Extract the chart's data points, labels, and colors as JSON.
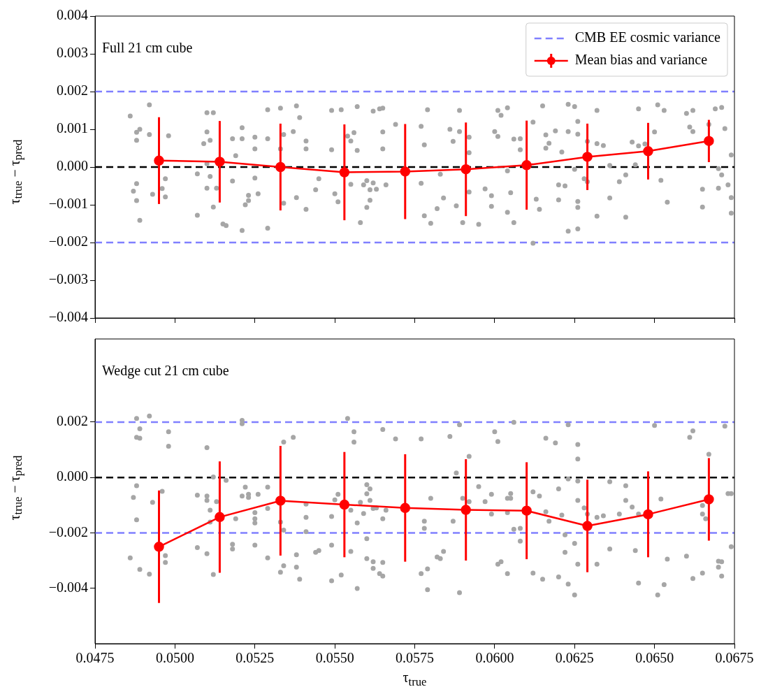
{
  "chart_data": [
    {
      "type": "line",
      "ylabel": "τ$_{true}$ − τ$_{pred}$",
      "annotations": [
        "Full 21 cm cube"
      ],
      "legend": "top right",
      "grid": false,
      "marker": "circle",
      "tick_labels": "y",
      "xlim": [
        0.0475,
        0.0675
      ],
      "xticks": [
        {
          "value": 0.0475,
          "label": null
        },
        {
          "value": 0.05,
          "label": null
        },
        {
          "value": 0.0525,
          "label": null
        },
        {
          "value": 0.055,
          "label": null
        },
        {
          "value": 0.0575,
          "label": null
        },
        {
          "value": 0.06,
          "label": null
        },
        {
          "value": 0.0625,
          "label": null
        },
        {
          "value": 0.065,
          "label": null
        },
        {
          "value": 0.0675,
          "label": null
        }
      ],
      "ylim": [
        -0.004,
        0.004
      ],
      "yticks": [
        {
          "value": -0.004,
          "label": "−0.004"
        },
        {
          "value": -0.003,
          "label": "−0.003"
        },
        {
          "value": -0.002,
          "label": "−0.002"
        },
        {
          "value": -0.001,
          "label": "−0.001"
        },
        {
          "value": 0,
          "label": "0.000"
        },
        {
          "value": 0.001,
          "label": "0.001"
        },
        {
          "value": 0.002,
          "label": "0.002"
        },
        {
          "value": 0.003,
          "label": "0.003"
        },
        {
          "value": 0.004,
          "label": "0.004"
        }
      ],
      "ref_lines": [
        {
          "axis": "y",
          "value": 0.002,
          "label": "CMB EE cosmic variance",
          "color": "#8080ff",
          "line_style": "dashed"
        },
        {
          "axis": "y",
          "value": -0.002,
          "color": "#8080ff",
          "line_style": "dashed"
        },
        {
          "axis": "y",
          "value": 0,
          "color": "#000000",
          "line_style": "dashed"
        }
      ],
      "x": [
        0.0495,
        0.0514,
        0.0533,
        0.0553,
        0.0572,
        0.0591,
        0.061,
        0.0629,
        0.0648,
        0.0667
      ],
      "series": [
        {
          "type": "scatter",
          "color": "#a6a6a6",
          "x": [
            0.0486,
            0.0492,
            0.0488,
            0.0489,
            0.0492,
            0.0488,
            0.0498,
            0.0488,
            0.0487,
            0.0488,
            0.0489,
            0.0493,
            0.0497,
            0.0496,
            0.0497,
            0.051,
            0.0512,
            0.051,
            0.0511,
            0.0509,
            0.0519,
            0.051,
            0.0507,
            0.0511,
            0.051,
            0.0513,
            0.0512,
            0.0507,
            0.0515,
            0.0516,
            0.0521,
            0.0518,
            0.0521,
            0.0521,
            0.0525,
            0.0525,
            0.0529,
            0.0529,
            0.0533,
            0.0538,
            0.0539,
            0.0534,
            0.0537,
            0.0541,
            0.0541,
            0.0533,
            0.0518,
            0.0525,
            0.0526,
            0.0523,
            0.0523,
            0.0522,
            0.0529,
            0.0534,
            0.0538,
            0.0541,
            0.0544,
            0.0545,
            0.0549,
            0.0552,
            0.0557,
            0.0562,
            0.0564,
            0.0565,
            0.0554,
            0.0556,
            0.0555,
            0.0549,
            0.0557,
            0.0565,
            0.0565,
            0.0569,
            0.055,
            0.0551,
            0.0555,
            0.0559,
            0.056,
            0.0562,
            0.0561,
            0.0563,
            0.0561,
            0.056,
            0.0558,
            0.0566,
            0.0579,
            0.0577,
            0.0578,
            0.0586,
            0.0589,
            0.0589,
            0.0587,
            0.0592,
            0.0592,
            0.0601,
            0.0602,
            0.0604,
            0.06,
            0.0601,
            0.0606,
            0.0608,
            0.0608,
            0.0612,
            0.0615,
            0.0616,
            0.0617,
            0.0616,
            0.0619,
            0.0621,
            0.0623,
            0.0625,
            0.0626,
            0.0623,
            0.0626,
            0.0629,
            0.0632,
            0.0634,
            0.0632,
            0.0645,
            0.0651,
            0.0653,
            0.065,
            0.0643,
            0.0645,
            0.0647,
            0.066,
            0.0662,
            0.0661,
            0.0662,
            0.0669,
            0.0671,
            0.0672,
            0.0667,
            0.0674,
            0.0636,
            0.0644,
            0.0577,
            0.0583,
            0.0584,
            0.0582,
            0.0578,
            0.058,
            0.0588,
            0.059,
            0.0592,
            0.0595,
            0.0597,
            0.0599,
            0.0599,
            0.0604,
            0.0605,
            0.0604,
            0.0606,
            0.0613,
            0.0614,
            0.0612,
            0.062,
            0.0622,
            0.062,
            0.0626,
            0.0626,
            0.0628,
            0.0629,
            0.0625,
            0.0623,
            0.0626,
            0.0632,
            0.0636,
            0.0639,
            0.0641,
            0.0641,
            0.0652,
            0.0654,
            0.0665,
            0.0665,
            0.067,
            0.0671,
            0.067,
            0.0673,
            0.0674,
            0.0674
          ],
          "values": [
            0.00135,
            0.00165,
            0.00092,
            0.001,
            0.00086,
            0.00071,
            0.00083,
            -0.00044,
            -0.00064,
            -0.00089,
            -0.00141,
            -0.00072,
            -0.00031,
            -0.00057,
            -0.00079,
            0.00144,
            0.00144,
            0.00093,
            0.00071,
            0.00062,
            0.0003,
            9e-05,
            -0.00018,
            -0.00025,
            -0.00056,
            -0.00056,
            -0.00106,
            -0.00128,
            -0.00151,
            -0.00155,
            -0.00168,
            0.00075,
            0.00075,
            0.00104,
            0.00079,
            0.00048,
            0.00075,
            0.00152,
            0.00156,
            0.00162,
            0.00131,
            0.00086,
            0.00094,
            0.00069,
            0.00048,
            0.00048,
            -0.00037,
            -0.00029,
            -0.00071,
            -0.00075,
            -0.00089,
            -0.001,
            -0.00162,
            -0.00096,
            -0.00081,
            -0.00112,
            -0.0006,
            -0.00031,
            0.0015,
            0.00152,
            0.0016,
            0.00148,
            0.00154,
            0.00156,
            0.00082,
            0.00091,
            0.00069,
            0.00046,
            0.00044,
            0.00093,
            0.00048,
            0.00113,
            -0.00071,
            -0.00092,
            -0.00046,
            -0.00047,
            -0.00036,
            -0.00042,
            -0.0006,
            -0.00059,
            -0.00088,
            -0.00107,
            -0.00147,
            -0.00047,
            0.00152,
            0.00108,
            0.00059,
            0.001,
            0.0015,
            0.00094,
            0.00068,
            0.00079,
            0.00038,
            0.0015,
            0.00137,
            0.00157,
            0.00094,
            0.00081,
            0.00074,
            0.00075,
            0.00046,
            0.00119,
            0.00162,
            0.00085,
            0.00063,
            0.0005,
            0.00096,
            0.0004,
            0.00166,
            0.0016,
            0.00121,
            0.00094,
            0.00087,
            0.00068,
            0.00062,
            0.00057,
            0.0015,
            0.00154,
            0.00165,
            0.0015,
            0.00093,
            0.00066,
            0.00056,
            0.00061,
            0.00142,
            0.0015,
            0.00106,
            0.00094,
            0.00154,
            0.00158,
            0.00102,
            0.00113,
            0.00032,
            4e-05,
            6e-05,
            -0.00043,
            -0.00019,
            -0.00082,
            -0.0011,
            -0.00129,
            -0.00149,
            -0.00103,
            -0.00147,
            -0.00066,
            -0.00152,
            -0.00058,
            -0.00076,
            -0.00104,
            -0.0001,
            -0.00068,
            -0.0012,
            -0.00147,
            -0.00085,
            -0.00112,
            -0.00202,
            -0.00047,
            -0.0005,
            -0.00087,
            -0.00091,
            -0.00107,
            -0.00031,
            -0.00039,
            -6e-05,
            -0.0017,
            -0.00164,
            -0.0013,
            -0.00082,
            -0.00039,
            -0.00021,
            -0.00133,
            -0.00035,
            -0.00093,
            -0.00059,
            -0.00106,
            -4e-05,
            -0.00021,
            -0.00056,
            -0.00047,
            -0.00081,
            -0.00122
          ]
        },
        {
          "type": "line",
          "name": "Mean bias and variance",
          "color": "#ff0000",
          "line_style": "solid",
          "values": [
            0.00017,
            0.00014,
            0.0,
            -0.00014,
            -0.00012,
            -6e-05,
            5e-05,
            0.00027,
            0.00042,
            0.00069
          ],
          "errors": [
            0.00115,
            0.00108,
            0.00115,
            0.00127,
            0.00126,
            0.00124,
            0.00118,
            0.00088,
            0.00075,
            0.00056
          ]
        }
      ]
    },
    {
      "type": "line",
      "xlabel": "τ$_{true}$",
      "ylabel": "τ$_{true}$ − τ$_{pred}$",
      "annotations": [
        "Wedge cut 21 cm cube"
      ],
      "grid": false,
      "marker": "circle",
      "xlim": [
        0.0475,
        0.0675
      ],
      "xticks": [
        {
          "value": 0.0475,
          "label": "0.0475"
        },
        {
          "value": 0.05,
          "label": "0.0500"
        },
        {
          "value": 0.0525,
          "label": "0.0525"
        },
        {
          "value": 0.055,
          "label": "0.0550"
        },
        {
          "value": 0.0575,
          "label": "0.0575"
        },
        {
          "value": 0.06,
          "label": "0.0600"
        },
        {
          "value": 0.0625,
          "label": "0.0625"
        },
        {
          "value": 0.065,
          "label": "0.0650"
        },
        {
          "value": 0.0675,
          "label": "0.0675"
        }
      ],
      "ylim": [
        -0.006,
        0.005
      ],
      "yticks": [
        {
          "value": -0.004,
          "label": "−0.004"
        },
        {
          "value": -0.002,
          "label": "−0.002"
        },
        {
          "value": 0,
          "label": "0.000"
        },
        {
          "value": 0.002,
          "label": "0.002"
        }
      ],
      "ref_lines": [
        {
          "axis": "y",
          "value": 0.002,
          "color": "#8080ff",
          "line_style": "dashed"
        },
        {
          "axis": "y",
          "value": -0.002,
          "color": "#8080ff",
          "line_style": "dashed"
        },
        {
          "axis": "y",
          "value": 0,
          "color": "#000000",
          "line_style": "dashed"
        }
      ],
      "x": [
        0.0495,
        0.0514,
        0.0533,
        0.0553,
        0.0572,
        0.0591,
        0.061,
        0.0629,
        0.0648,
        0.0667
      ],
      "series": [
        {
          "type": "scatter",
          "color": "#a6a6a6",
          "x": [
            0.0488,
            0.0492,
            0.0489,
            0.0488,
            0.0489,
            0.0498,
            0.0498,
            0.0488,
            0.0487,
            0.0488,
            0.0493,
            0.0496,
            0.0486,
            0.0489,
            0.0492,
            0.0497,
            0.0497,
            0.0521,
            0.0521,
            0.051,
            0.0512,
            0.0516,
            0.0507,
            0.051,
            0.051,
            0.0513,
            0.0511,
            0.0511,
            0.0519,
            0.0522,
            0.0521,
            0.0523,
            0.0523,
            0.0526,
            0.0529,
            0.0529,
            0.0525,
            0.0525,
            0.0525,
            0.0507,
            0.051,
            0.0512,
            0.0518,
            0.0518,
            0.0525,
            0.0529,
            0.0534,
            0.0537,
            0.0554,
            0.0556,
            0.0556,
            0.0565,
            0.0569,
            0.0533,
            0.0534,
            0.0541,
            0.0541,
            0.0541,
            0.0534,
            0.0533,
            0.0538,
            0.0538,
            0.0539,
            0.0544,
            0.0545,
            0.0549,
            0.0549,
            0.055,
            0.0551,
            0.0555,
            0.0557,
            0.0558,
            0.0559,
            0.056,
            0.0561,
            0.056,
            0.0561,
            0.0562,
            0.0563,
            0.0566,
            0.0565,
            0.056,
            0.0555,
            0.056,
            0.0562,
            0.0562,
            0.0564,
            0.0565,
            0.0565,
            0.0552,
            0.0549,
            0.0557,
            0.0577,
            0.0586,
            0.0589,
            0.0592,
            0.0588,
            0.06,
            0.0601,
            0.0606,
            0.0616,
            0.0619,
            0.0623,
            0.0626,
            0.0626,
            0.065,
            0.0661,
            0.0662,
            0.0672,
            0.0667,
            0.058,
            0.0578,
            0.0578,
            0.0587,
            0.059,
            0.0592,
            0.0595,
            0.0597,
            0.0599,
            0.0599,
            0.0604,
            0.0605,
            0.0605,
            0.0604,
            0.0606,
            0.0608,
            0.0608,
            0.0612,
            0.0614,
            0.0616,
            0.0617,
            0.0621,
            0.062,
            0.0623,
            0.0626,
            0.0626,
            0.0628,
            0.0629,
            0.0632,
            0.0634,
            0.0636,
            0.0639,
            0.0641,
            0.0641,
            0.0643,
            0.0645,
            0.0652,
            0.0665,
            0.0665,
            0.0666,
            0.0673,
            0.0674,
            0.0622,
            0.0625,
            0.0622,
            0.0626,
            0.0632,
            0.0636,
            0.0644,
            0.0645,
            0.0651,
            0.0653,
            0.0654,
            0.066,
            0.0662,
            0.0665,
            0.067,
            0.067,
            0.0671,
            0.0671,
            0.0674,
            0.0577,
            0.0579,
            0.0579,
            0.0582,
            0.0583,
            0.0584,
            0.0589,
            0.0601,
            0.0602,
            0.0604,
            0.0612,
            0.0615,
            0.062,
            0.0623,
            0.0625
          ],
          "values": [
            0.00213,
            0.00222,
            0.00176,
            0.00145,
            0.00142,
            0.00165,
            0.00113,
            -0.0003,
            -0.00072,
            -0.00153,
            -0.0009,
            -0.0005,
            -0.0029,
            -0.00332,
            -0.00349,
            -0.00282,
            -0.00307,
            0.00206,
            0.00194,
            0.00108,
            2e-05,
            -0.0001,
            -0.00064,
            -0.00067,
            -0.00083,
            -0.00087,
            -0.00118,
            -0.00161,
            -0.00149,
            -0.00035,
            -0.00067,
            -0.00072,
            -0.00061,
            -0.00061,
            -0.00035,
            -0.00112,
            -0.00127,
            -0.00149,
            -0.00164,
            -0.00253,
            -0.00275,
            -0.0035,
            -0.00241,
            -0.00258,
            -0.00244,
            -0.0029,
            0.00128,
            0.00145,
            0.00213,
            0.00165,
            0.00128,
            0.00173,
            0.00139,
            -0.00161,
            -0.0019,
            -0.00096,
            -0.00144,
            -0.00196,
            -0.00319,
            -0.00342,
            -0.00279,
            -0.00324,
            -0.00367,
            -0.0027,
            -0.00264,
            -0.00244,
            -0.00141,
            -0.00081,
            -0.00061,
            -0.00118,
            -0.00164,
            -0.0009,
            -0.0013,
            -0.00026,
            -0.00041,
            -0.00059,
            -0.00083,
            -0.00112,
            -0.0011,
            -0.00118,
            -0.00149,
            -0.00221,
            -0.00267,
            -0.00293,
            -0.00304,
            -0.00328,
            -0.00347,
            -0.00356,
            -0.00307,
            -0.00352,
            -0.00373,
            -0.00401,
            0.00139,
            0.00148,
            0.0019,
            0.00076,
            0.00016,
            0.00165,
            0.0013,
            0.00199,
            0.00142,
            0.00125,
            0.0019,
            0.00119,
            0.00067,
            0.00188,
            0.00145,
            0.00168,
            0.00185,
            0.00084,
            -0.00075,
            -0.00158,
            -0.00184,
            -0.00158,
            -0.00075,
            -0.00087,
            -0.00033,
            -0.00087,
            -0.00061,
            -0.00132,
            -0.00075,
            -0.00075,
            -0.00058,
            -0.00127,
            -0.00187,
            -0.00184,
            -0.0023,
            -0.00052,
            -0.00067,
            -0.00124,
            -0.00158,
            -0.00136,
            -0.00041,
            -5e-05,
            -0.00013,
            -0.00083,
            -0.0011,
            -0.00132,
            -0.00144,
            -0.00138,
            -0.00015,
            -0.00132,
            -0.0003,
            -0.00083,
            -0.00107,
            -0.00132,
            -0.00078,
            -0.00101,
            -0.00132,
            -0.00149,
            -0.00058,
            -0.00058,
            -0.00207,
            -0.00238,
            -0.0027,
            -0.00313,
            -0.00313,
            -0.00258,
            -0.00264,
            -0.00381,
            -0.00424,
            -0.00387,
            -0.00295,
            -0.00284,
            -0.00365,
            -0.00345,
            -0.00302,
            -0.00324,
            -0.00304,
            -0.00356,
            -0.0025,
            -0.00347,
            -0.0033,
            -0.00405,
            -0.00287,
            -0.00293,
            -0.00267,
            -0.00416,
            -0.00313,
            -0.00304,
            -0.00347,
            -0.00345,
            -0.00367,
            -0.00359,
            -0.00385,
            -0.00424
          ]
        },
        {
          "type": "line",
          "color": "#ff0000",
          "line_style": "solid",
          "values": [
            -0.0025,
            -0.00143,
            -0.00084,
            -0.00098,
            -0.0011,
            -0.00117,
            -0.0012,
            -0.00175,
            -0.00133,
            -0.00079
          ],
          "errors": [
            0.00203,
            0.00201,
            0.00198,
            0.0019,
            0.00194,
            0.00183,
            0.00175,
            0.00167,
            0.00155,
            0.00149
          ]
        }
      ]
    }
  ]
}
